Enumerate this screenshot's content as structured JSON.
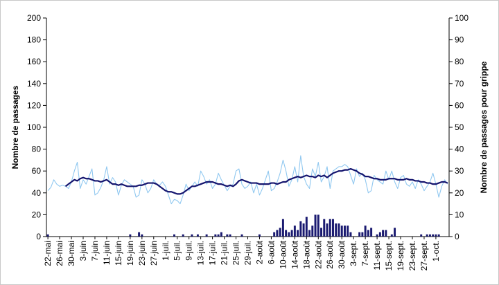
{
  "chart_data": {
    "type": "combo",
    "y_label": "Nombre de passages",
    "y2_label": "Nombre de passages pour grippe",
    "categories": [
      "22-mai",
      null,
      null,
      null,
      "26-mai",
      null,
      null,
      null,
      "30-mai",
      null,
      null,
      null,
      "3-juin",
      null,
      null,
      null,
      "7-juin",
      null,
      null,
      null,
      "11-juin",
      null,
      null,
      null,
      "15-juin",
      null,
      null,
      null,
      "19-juin",
      null,
      null,
      null,
      "23-juin",
      null,
      null,
      null,
      "27-juin",
      null,
      null,
      null,
      "1-juil.",
      null,
      null,
      null,
      "5-juil.",
      null,
      null,
      null,
      "9-juil.",
      null,
      null,
      null,
      "13-juil.",
      null,
      null,
      null,
      "17-juil.",
      null,
      null,
      null,
      "21-juil.",
      null,
      null,
      null,
      "25-juil.",
      null,
      null,
      null,
      "29-juil.",
      null,
      null,
      null,
      "2-août",
      null,
      null,
      null,
      "6-août",
      null,
      null,
      null,
      "10-août",
      null,
      null,
      null,
      "14-août",
      null,
      null,
      null,
      "18-août",
      null,
      null,
      null,
      "22-août",
      null,
      null,
      null,
      "26-août",
      null,
      null,
      null,
      "30-août",
      null,
      null,
      null,
      "3-sept.",
      null,
      null,
      null,
      "7-sept.",
      null,
      null,
      null,
      "11-sept.",
      null,
      null,
      null,
      "15-sept.",
      null,
      null,
      null,
      "19-sept.",
      null,
      null,
      null,
      "23-sept.",
      null,
      null,
      null,
      "27-sept.",
      null,
      null,
      null,
      "1-oct.",
      null,
      null,
      null,
      null
    ],
    "series": [
      {
        "type": "bar",
        "axis": "y2",
        "color": "#1a1a70",
        "values": [
          1,
          0,
          0,
          0,
          0,
          0,
          0,
          0,
          0,
          0,
          0,
          0,
          0,
          0,
          0,
          0,
          0,
          0,
          0,
          0,
          0,
          0,
          0,
          0,
          0,
          0,
          0,
          0,
          1,
          0,
          0,
          2,
          1,
          0,
          0,
          0,
          0,
          0,
          0,
          0,
          0,
          0,
          0,
          1,
          0,
          0,
          1,
          0,
          0,
          1,
          0,
          1,
          0,
          0,
          1,
          0,
          0,
          1,
          1,
          2,
          0,
          1,
          1,
          0,
          0,
          0,
          1,
          0,
          0,
          0,
          0,
          0,
          1,
          0,
          0,
          0,
          0,
          2,
          3,
          4,
          8,
          3,
          2,
          3,
          5,
          3,
          7,
          6,
          9,
          3,
          5,
          10,
          10,
          4,
          8,
          6,
          8,
          8,
          6,
          6,
          5,
          5,
          5,
          2,
          0,
          0,
          2,
          2,
          5,
          3,
          4,
          0,
          1,
          2,
          3,
          3,
          0,
          1,
          4,
          0,
          0,
          0,
          0,
          0,
          0,
          0,
          0,
          1,
          0,
          1,
          1,
          1,
          1,
          1,
          0,
          0,
          0
        ]
      },
      {
        "type": "line",
        "color": "#90c8f0",
        "values": [
          42,
          45,
          52,
          48,
          46,
          47,
          46,
          44,
          50,
          60,
          68,
          44,
          52,
          48,
          55,
          62,
          38,
          40,
          45,
          52,
          64,
          48,
          54,
          50,
          38,
          47,
          52,
          50,
          48,
          46,
          36,
          38,
          52,
          48,
          40,
          44,
          52,
          48,
          47,
          50,
          46,
          38,
          30,
          34,
          33,
          30,
          38,
          48,
          42,
          46,
          50,
          46,
          60,
          55,
          48,
          52,
          44,
          48,
          58,
          52,
          47,
          42,
          46,
          48,
          60,
          62,
          48,
          44,
          46,
          50,
          40,
          48,
          38,
          44,
          52,
          60,
          42,
          44,
          50,
          58,
          70,
          60,
          46,
          52,
          64,
          50,
          74,
          55,
          48,
          44,
          62,
          55,
          68,
          50,
          55,
          64,
          44,
          60,
          62,
          64,
          64,
          66,
          64,
          56,
          48,
          62,
          55,
          58,
          52,
          40,
          42,
          56,
          52,
          50,
          48,
          60,
          52,
          60,
          50,
          44,
          54,
          56,
          48,
          46,
          50,
          44,
          52,
          48,
          42,
          46,
          50,
          58,
          48,
          36,
          46,
          52,
          48
        ]
      },
      {
        "type": "line",
        "color": "#14146e",
        "values": [
          null,
          null,
          null,
          null,
          null,
          null,
          46,
          48,
          50,
          52,
          51,
          53,
          54,
          53,
          53,
          52,
          51,
          51,
          50,
          51,
          52,
          50,
          48,
          48,
          47,
          48,
          47,
          46,
          46,
          46,
          46,
          47,
          47,
          48,
          49,
          49,
          49,
          48,
          46,
          44,
          42,
          41,
          41,
          40,
          39,
          39,
          40,
          42,
          44,
          46,
          46,
          47,
          48,
          49,
          50,
          50,
          50,
          49,
          48,
          48,
          47,
          46,
          47,
          46,
          48,
          51,
          52,
          51,
          50,
          49,
          49,
          49,
          48,
          48,
          48,
          48,
          49,
          49,
          48,
          49,
          50,
          50,
          52,
          53,
          54,
          55,
          54,
          55,
          56,
          55,
          55,
          54,
          56,
          55,
          56,
          54,
          56,
          58,
          59,
          60,
          60,
          61,
          61,
          62,
          61,
          60,
          58,
          57,
          55,
          55,
          54,
          53,
          53,
          52,
          52,
          52,
          53,
          53,
          53,
          52,
          52,
          52,
          53,
          52,
          52,
          51,
          51,
          50,
          50,
          49,
          49,
          48,
          48,
          49,
          50,
          50,
          49
        ]
      }
    ],
    "ylim": [
      0,
      200
    ],
    "yticks": [
      0,
      20,
      40,
      60,
      80,
      100,
      120,
      140,
      160,
      180,
      200
    ],
    "y2lim": [
      0,
      100
    ],
    "y2ticks": [
      0,
      10,
      20,
      30,
      40,
      50,
      60,
      70,
      80,
      90,
      100
    ]
  }
}
